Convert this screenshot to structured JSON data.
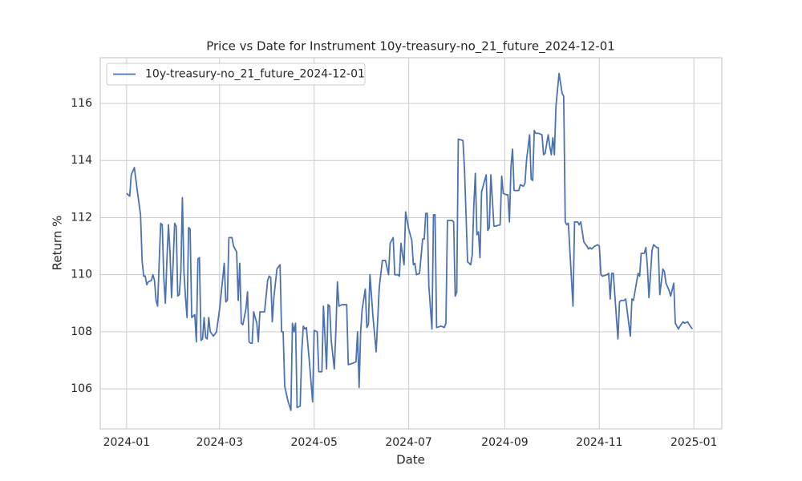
{
  "chart_data": {
    "type": "line",
    "title": "Price vs Date for Instrument 10y-treasury-no_21_future_2024-12-01",
    "xlabel": "Date",
    "ylabel": "Return %",
    "legend": "upper left",
    "grid": true,
    "xlim": [
      "2023-12-15",
      "2025-01-19"
    ],
    "ylim": [
      104.6,
      117.6
    ],
    "yticks": [
      106,
      108,
      110,
      112,
      114,
      116
    ],
    "xticks": [
      {
        "value": "2024-01-01",
        "label": "2024-01"
      },
      {
        "value": "2024-03-01",
        "label": "2024-03"
      },
      {
        "value": "2024-05-01",
        "label": "2024-05"
      },
      {
        "value": "2024-07-01",
        "label": "2024-07"
      },
      {
        "value": "2024-09-01",
        "label": "2024-09"
      },
      {
        "value": "2024-11-01",
        "label": "2024-11"
      },
      {
        "value": "2025-01-01",
        "label": "2025-01"
      }
    ],
    "x": [
      "2024-01-01",
      "2024-01-03",
      "2024-01-04",
      "2024-01-06",
      "2024-01-08",
      "2024-01-10",
      "2024-01-11",
      "2024-01-12",
      "2024-01-13",
      "2024-01-14",
      "2024-01-15",
      "2024-01-17",
      "2024-01-18",
      "2024-01-19",
      "2024-01-20",
      "2024-01-21",
      "2024-01-22",
      "2024-01-23",
      "2024-01-24",
      "2024-01-25",
      "2024-01-26",
      "2024-01-27",
      "2024-01-28",
      "2024-01-29",
      "2024-01-30",
      "2024-01-31",
      "2024-02-01",
      "2024-02-02",
      "2024-02-03",
      "2024-02-04",
      "2024-02-05",
      "2024-02-06",
      "2024-02-07",
      "2024-02-08",
      "2024-02-09",
      "2024-02-10",
      "2024-02-11",
      "2024-02-12",
      "2024-02-13",
      "2024-02-14",
      "2024-02-15",
      "2024-02-16",
      "2024-02-17",
      "2024-02-18",
      "2024-02-19",
      "2024-02-20",
      "2024-02-21",
      "2024-02-22",
      "2024-02-23",
      "2024-02-24",
      "2024-02-26",
      "2024-02-28",
      "2024-03-01",
      "2024-03-04",
      "2024-03-05",
      "2024-03-06",
      "2024-03-07",
      "2024-03-09",
      "2024-03-10",
      "2024-03-12",
      "2024-03-13",
      "2024-03-14",
      "2024-03-15",
      "2024-03-16",
      "2024-03-18",
      "2024-03-19",
      "2024-03-20",
      "2024-03-21",
      "2024-03-22",
      "2024-03-23",
      "2024-03-25",
      "2024-03-26",
      "2024-03-27",
      "2024-03-30",
      "2024-04-01",
      "2024-04-02",
      "2024-04-03",
      "2024-04-04",
      "2024-04-05",
      "2024-04-07",
      "2024-04-09",
      "2024-04-10",
      "2024-04-11",
      "2024-04-12",
      "2024-04-14",
      "2024-04-16",
      "2024-04-17",
      "2024-04-18",
      "2024-04-19",
      "2024-04-20",
      "2024-04-22",
      "2024-04-23",
      "2024-04-24",
      "2024-04-25",
      "2024-04-26",
      "2024-04-28",
      "2024-04-30",
      "2024-05-01",
      "2024-05-03",
      "2024-05-04",
      "2024-05-06",
      "2024-05-07",
      "2024-05-09",
      "2024-05-10",
      "2024-05-11",
      "2024-05-12",
      "2024-05-14",
      "2024-05-15",
      "2024-05-16",
      "2024-05-17",
      "2024-05-19",
      "2024-05-22",
      "2024-05-23",
      "2024-05-26",
      "2024-05-28",
      "2024-05-29",
      "2024-05-30",
      "2024-05-31",
      "2024-06-01",
      "2024-06-03",
      "2024-06-04",
      "2024-06-05",
      "2024-06-06",
      "2024-06-08",
      "2024-06-10",
      "2024-06-12",
      "2024-06-14",
      "2024-06-16",
      "2024-06-18",
      "2024-06-19",
      "2024-06-21",
      "2024-06-22",
      "2024-06-24",
      "2024-06-25",
      "2024-06-26",
      "2024-06-28",
      "2024-06-29",
      "2024-07-01",
      "2024-07-03",
      "2024-07-04",
      "2024-07-05",
      "2024-07-06",
      "2024-07-08",
      "2024-07-10",
      "2024-07-11",
      "2024-07-12",
      "2024-07-13",
      "2024-07-14",
      "2024-07-16",
      "2024-07-17",
      "2024-07-18",
      "2024-07-19",
      "2024-07-22",
      "2024-07-24",
      "2024-07-25",
      "2024-07-26",
      "2024-07-29",
      "2024-07-30",
      "2024-07-31",
      "2024-08-01",
      "2024-08-02",
      "2024-08-05",
      "2024-08-06",
      "2024-08-08",
      "2024-08-10",
      "2024-08-11",
      "2024-08-12",
      "2024-08-13",
      "2024-08-14",
      "2024-08-15",
      "2024-08-16",
      "2024-08-17",
      "2024-08-20",
      "2024-08-21",
      "2024-08-22",
      "2024-08-23",
      "2024-08-25",
      "2024-08-26",
      "2024-08-29",
      "2024-08-30",
      "2024-08-31",
      "2024-09-02",
      "2024-09-03",
      "2024-09-04",
      "2024-09-05",
      "2024-09-06",
      "2024-09-07",
      "2024-09-10",
      "2024-09-11",
      "2024-09-13",
      "2024-09-14",
      "2024-09-15",
      "2024-09-17",
      "2024-09-18",
      "2024-09-19",
      "2024-09-20",
      "2024-09-21",
      "2024-09-23",
      "2024-09-25",
      "2024-09-26",
      "2024-09-27",
      "2024-09-29",
      "2024-09-30",
      "2024-10-01",
      "2024-10-02",
      "2024-10-03",
      "2024-10-04",
      "2024-10-06",
      "2024-10-08",
      "2024-10-09",
      "2024-10-10",
      "2024-10-11",
      "2024-10-12",
      "2024-10-15",
      "2024-10-16",
      "2024-10-18",
      "2024-10-19",
      "2024-10-20",
      "2024-10-22",
      "2024-10-24",
      "2024-10-25",
      "2024-10-26",
      "2024-10-27",
      "2024-10-29",
      "2024-10-31",
      "2024-11-01",
      "2024-11-02",
      "2024-11-03",
      "2024-11-06",
      "2024-11-07",
      "2024-11-08",
      "2024-11-09",
      "2024-11-10",
      "2024-11-13",
      "2024-11-14",
      "2024-11-15",
      "2024-11-17",
      "2024-11-18",
      "2024-11-21",
      "2024-11-22",
      "2024-11-23",
      "2024-11-26",
      "2024-11-27",
      "2024-11-28",
      "2024-11-30",
      "2024-12-01",
      "2024-12-02",
      "2024-12-03",
      "2024-12-05",
      "2024-12-06",
      "2024-12-08",
      "2024-12-09",
      "2024-12-10",
      "2024-12-12",
      "2024-12-13",
      "2024-12-14",
      "2024-12-16",
      "2024-12-17",
      "2024-12-19",
      "2024-12-20",
      "2024-12-22",
      "2024-12-23",
      "2024-12-25",
      "2024-12-26",
      "2024-12-28",
      "2024-12-29",
      "2024-12-31"
    ],
    "series": [
      {
        "name": "10y-treasury-no_21_future_2024-12-01",
        "color": "#4c72b0",
        "values": [
          112.85,
          112.75,
          113.5,
          113.75,
          112.9,
          112.1,
          110.5,
          109.95,
          109.95,
          109.65,
          109.75,
          109.8,
          110.0,
          109.8,
          109.1,
          108.9,
          110.4,
          111.8,
          111.75,
          109.9,
          109.0,
          110.5,
          111.75,
          110.8,
          109.2,
          110.4,
          111.8,
          111.7,
          109.25,
          109.3,
          110.1,
          112.7,
          110.1,
          109.2,
          108.5,
          111.65,
          111.6,
          108.5,
          108.55,
          108.6,
          107.65,
          110.55,
          110.6,
          107.7,
          107.75,
          108.5,
          107.8,
          107.75,
          108.5,
          108.0,
          107.85,
          108.0,
          108.8,
          110.4,
          109.05,
          109.1,
          111.3,
          111.3,
          111.0,
          110.8,
          109.1,
          110.4,
          108.3,
          108.25,
          108.8,
          109.4,
          107.65,
          107.6,
          107.6,
          108.7,
          108.3,
          107.65,
          108.7,
          108.7,
          109.8,
          109.95,
          109.9,
          108.35,
          109.2,
          110.2,
          110.35,
          108.0,
          108.0,
          106.1,
          105.6,
          105.25,
          108.3,
          108.0,
          108.3,
          105.35,
          105.4,
          107.3,
          108.2,
          108.1,
          108.15,
          106.9,
          105.55,
          108.05,
          108.0,
          106.6,
          106.6,
          108.9,
          106.7,
          108.95,
          108.9,
          107.7,
          106.7,
          108.0,
          109.75,
          108.9,
          108.95,
          108.95,
          106.85,
          106.9,
          106.95,
          108.0,
          106.05,
          108.0,
          108.8,
          109.5,
          108.15,
          108.25,
          110.0,
          108.5,
          107.3,
          109.55,
          110.5,
          110.5,
          110.0,
          111.1,
          111.3,
          110.0,
          110.0,
          109.95,
          111.1,
          110.35,
          112.2,
          111.6,
          111.2,
          110.35,
          110.4,
          110.0,
          110.05,
          111.25,
          111.25,
          112.15,
          112.15,
          109.6,
          108.1,
          112.1,
          112.1,
          108.15,
          108.2,
          108.15,
          108.3,
          111.9,
          111.9,
          111.85,
          109.25,
          109.4,
          114.75,
          114.7,
          113.7,
          110.45,
          110.35,
          110.7,
          112.4,
          113.55,
          111.4,
          111.5,
          110.6,
          112.9,
          113.5,
          111.55,
          111.65,
          113.5,
          111.7,
          111.7,
          111.75,
          113.45,
          112.85,
          112.8,
          112.8,
          111.85,
          113.8,
          114.4,
          112.95,
          112.95,
          113.15,
          113.1,
          113.2,
          114.0,
          114.9,
          113.35,
          113.3,
          115.05,
          114.95,
          114.95,
          114.9,
          114.2,
          114.25,
          114.9,
          114.5,
          114.2,
          114.8,
          114.2,
          115.9,
          117.05,
          116.35,
          116.25,
          111.85,
          111.75,
          111.8,
          108.9,
          111.85,
          111.85,
          111.75,
          111.85,
          111.15,
          111.0,
          110.9,
          110.95,
          110.9,
          111.0,
          111.05,
          111.0,
          110.0,
          109.95,
          110.0,
          110.05,
          109.15,
          110.05,
          110.05,
          107.75,
          109.05,
          109.1,
          109.1,
          109.15,
          107.85,
          109.15,
          109.1,
          110.05,
          109.95,
          110.75,
          110.75,
          110.95,
          110.3,
          109.2,
          110.85,
          111.05,
          110.95,
          110.95,
          109.3,
          110.2,
          110.1,
          109.7,
          109.45,
          109.25,
          109.7,
          108.3,
          108.1,
          108.2,
          108.35,
          108.3,
          108.35,
          108.25,
          108.1
        ]
      }
    ]
  }
}
